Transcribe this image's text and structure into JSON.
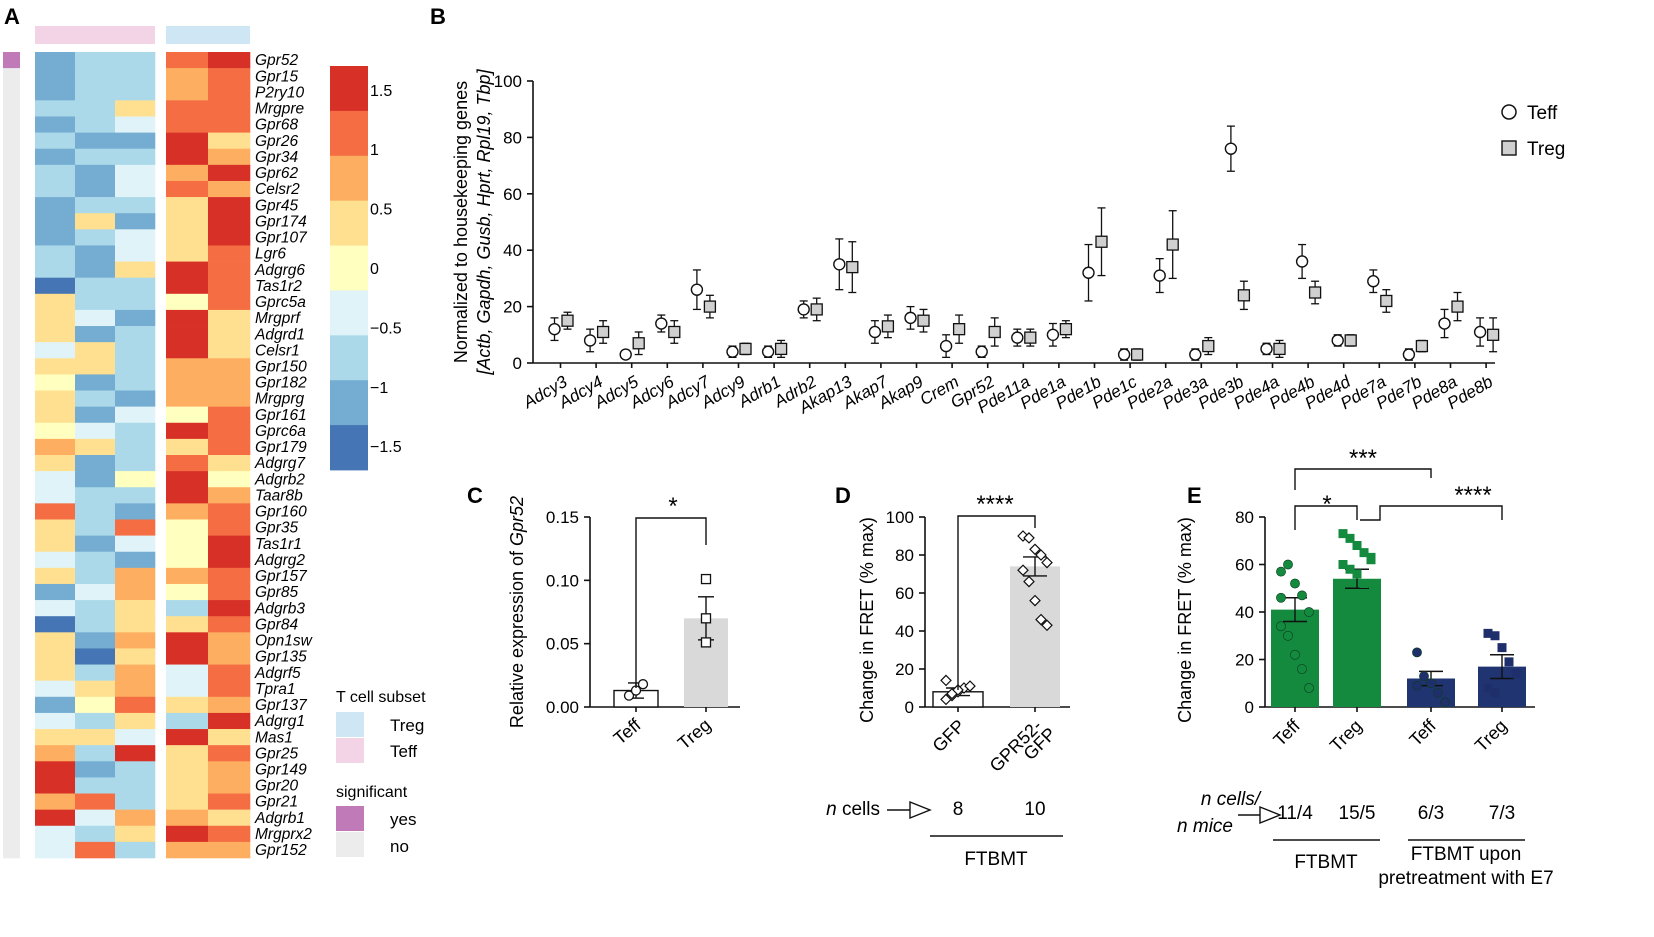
{
  "chart_data": [
    {
      "panel": "A",
      "type": "heatmap",
      "title": "",
      "column_groups": [
        {
          "name": "Teff",
          "columns": 3,
          "color": "#f3d3e6"
        },
        {
          "name": "Treg",
          "columns": 2,
          "color": "#cfe6f5"
        }
      ],
      "genes": [
        "Gpr52",
        "Gpr15",
        "P2ry10",
        "Mrgpre",
        "Gpr68",
        "Gpr26",
        "Gpr34",
        "Gpr62",
        "Celsr2",
        "Gpr45",
        "Gpr174",
        "Gpr107",
        "Lgr6",
        "Adgrg6",
        "Tas1r2",
        "Gprc5a",
        "Mrgprf",
        "Adgrd1",
        "Celsr1",
        "Gpr150",
        "Gpr182",
        "Mrgprg",
        "Gpr161",
        "Gprc6a",
        "Gpr179",
        "Adgrg7",
        "Adgrb2",
        "Taar8b",
        "Gpr160",
        "Gpr35",
        "Tas1r1",
        "Adgrg2",
        "Gpr157",
        "Gpr85",
        "Adgrb3",
        "Gpr84",
        "Opn1sw",
        "Gpr135",
        "Adgrf5",
        "Tpra1",
        "Gpr137",
        "Adgrg1",
        "Mas1",
        "Gpr25",
        "Gpr149",
        "Gpr20",
        "Gpr21",
        "Adgrb1",
        "Mrgprx2",
        "Gpr152"
      ],
      "values": [
        [
          -1.0,
          -0.6,
          -0.8,
          1.0,
          1.4
        ],
        [
          -1.0,
          -0.8,
          -0.6,
          0.9,
          1.3
        ],
        [
          -1.1,
          -0.9,
          -0.7,
          0.7,
          1.2
        ],
        [
          -0.9,
          -0.8,
          0.2,
          1.3,
          1.0
        ],
        [
          -1.2,
          -0.9,
          -0.3,
          1.0,
          1.2
        ],
        [
          -0.6,
          -1.0,
          -1.2,
          1.5,
          0.5
        ],
        [
          -1.0,
          -0.7,
          -0.9,
          1.4,
          0.8
        ],
        [
          -0.8,
          -1.0,
          -0.5,
          0.6,
          1.5
        ],
        [
          -0.7,
          -1.1,
          -0.4,
          1.0,
          0.9
        ],
        [
          -1.1,
          -0.6,
          -0.7,
          0.4,
          1.7
        ],
        [
          -1.2,
          0.2,
          -1.0,
          0.3,
          1.5
        ],
        [
          -1.0,
          -0.7,
          -0.5,
          0.3,
          1.4
        ],
        [
          -0.7,
          -1.2,
          -0.2,
          0.3,
          1.3
        ],
        [
          -0.6,
          -1.1,
          0.3,
          1.5,
          1.1
        ],
        [
          -1.4,
          -0.7,
          -0.8,
          1.4,
          1.0
        ],
        [
          0.4,
          -0.9,
          -0.7,
          0.1,
          1.3
        ],
        [
          0.3,
          -0.5,
          -1.1,
          1.4,
          0.4
        ],
        [
          0.2,
          -1.0,
          -0.6,
          1.5,
          0.3
        ],
        [
          -0.5,
          0.3,
          -0.9,
          1.7,
          0.5
        ],
        [
          0.3,
          0.2,
          -0.7,
          0.9,
          0.9
        ],
        [
          0.1,
          -1.3,
          -0.9,
          0.8,
          0.8
        ],
        [
          0.3,
          -0.7,
          -1.1,
          0.9,
          0.9
        ],
        [
          0.2,
          -1.2,
          -0.3,
          0.1,
          1.2
        ],
        [
          -0.1,
          -0.5,
          -0.9,
          1.4,
          1.1
        ],
        [
          0.6,
          0.3,
          -0.8,
          0.2,
          1.3
        ],
        [
          0.2,
          -1.1,
          -0.6,
          1.3,
          0.4
        ],
        [
          -0.5,
          -1.2,
          0.1,
          1.5,
          0.1
        ],
        [
          -0.4,
          -0.7,
          -0.9,
          1.4,
          0.7
        ],
        [
          1.0,
          -0.9,
          -1.1,
          0.8,
          1.0
        ],
        [
          0.2,
          -0.8,
          1.1,
          -0.1,
          1.3
        ],
        [
          0.5,
          -1.0,
          -0.4,
          0.0,
          1.6
        ],
        [
          -0.2,
          -0.6,
          -1.0,
          -0.1,
          1.6
        ],
        [
          0.4,
          -0.9,
          0.6,
          0.8,
          1.2
        ],
        [
          -1.1,
          -0.4,
          0.9,
          0.1,
          1.0
        ],
        [
          -0.4,
          -0.7,
          0.5,
          -0.6,
          1.7
        ],
        [
          -1.4,
          -0.8,
          0.3,
          0.4,
          1.0
        ],
        [
          0.3,
          -1.2,
          0.7,
          1.7,
          0.6
        ],
        [
          0.2,
          -1.4,
          0.4,
          1.5,
          0.7
        ],
        [
          0.5,
          -0.8,
          0.9,
          -0.5,
          1.2
        ],
        [
          -0.5,
          0.4,
          0.7,
          -0.4,
          1.3
        ],
        [
          -1.3,
          0.1,
          1.1,
          0.5,
          0.9
        ],
        [
          -0.3,
          -0.9,
          0.5,
          -0.6,
          1.4
        ],
        [
          0.2,
          0.4,
          -0.5,
          1.5,
          0.5
        ],
        [
          0.6,
          -0.8,
          1.4,
          0.5,
          1.0
        ],
        [
          1.4,
          -1.2,
          -0.6,
          0.3,
          0.9
        ],
        [
          1.6,
          -0.7,
          -0.9,
          0.4,
          0.8
        ],
        [
          0.8,
          1.3,
          -0.8,
          0.2,
          1.0
        ],
        [
          1.4,
          -0.3,
          0.6,
          0.9,
          0.4
        ],
        [
          -0.4,
          -0.6,
          0.3,
          1.5,
          1.0
        ],
        [
          -0.2,
          1.1,
          -0.9,
          0.6,
          0.9
        ]
      ],
      "significant": [
        true,
        false,
        false,
        false,
        false,
        false,
        false,
        false,
        false,
        false,
        false,
        false,
        false,
        false,
        false,
        false,
        false,
        false,
        false,
        false,
        false,
        false,
        false,
        false,
        false,
        false,
        false,
        false,
        false,
        false,
        false,
        false,
        false,
        false,
        false,
        false,
        false,
        false,
        false,
        false,
        false,
        false,
        false,
        false,
        false,
        false,
        false,
        false,
        false,
        false
      ],
      "colorbar": {
        "min": -1.7,
        "max": 1.7,
        "ticks": [
          1.5,
          1,
          0.5,
          0,
          -0.5,
          -1,
          -1.5
        ],
        "tick_labels": [
          "1.5",
          "1",
          "0.5",
          "0",
          "−0.5",
          "−1",
          "−1.5"
        ]
      },
      "colormap": [
        "#4575b4",
        "#74add1",
        "#abd9e9",
        "#e0f3f8",
        "#ffffbf",
        "#fee090",
        "#fdae61",
        "#f46d43",
        "#d73027"
      ],
      "legend": {
        "subset_title": "T cell subset",
        "subset_items": [
          {
            "label": "Treg",
            "color": "#cfe6f5"
          },
          {
            "label": "Teff",
            "color": "#f3d3e6"
          }
        ],
        "significant_title": "significant",
        "significant_items": [
          {
            "label": "yes",
            "color": "#c07ab8"
          },
          {
            "label": "no",
            "color": "#ececec"
          }
        ]
      }
    },
    {
      "panel": "B",
      "type": "scatter",
      "title": "",
      "ylabel_line1": "Normalized to housekeeping genes",
      "ylabel_line2": "[Actb, Gapdh, Gusb, Hprt, Rpl19, Tbp]",
      "ylim": [
        0,
        100
      ],
      "yticks": [
        0,
        20,
        40,
        60,
        80,
        100
      ],
      "categories": [
        "Adcy3",
        "Adcy4",
        "Adcy5",
        "Adcy6",
        "Adcy7",
        "Adcy9",
        "Adrb1",
        "Adrb2",
        "Akap13",
        "Akap7",
        "Akap9",
        "Crem",
        "Gpr52",
        "Pde11a",
        "Pde1a",
        "Pde1b",
        "Pde1c",
        "Pde2a",
        "Pde3a",
        "Pde3b",
        "Pde4a",
        "Pde4b",
        "Pde4d",
        "Pde7a",
        "Pde7b",
        "Pde8a",
        "Pde8b"
      ],
      "series": [
        {
          "name": "Teff",
          "marker": "open circle",
          "values": [
            12,
            8,
            3,
            14,
            26,
            4,
            4,
            19,
            35,
            11,
            16,
            6,
            4,
            9,
            10,
            32,
            3,
            31,
            3,
            76,
            5,
            36,
            8,
            29,
            3,
            14,
            11
          ],
          "errors": [
            4,
            4,
            1,
            3,
            7,
            2,
            2,
            3,
            9,
            4,
            4,
            4,
            2,
            3,
            4,
            10,
            2,
            6,
            2,
            8,
            2,
            6,
            2,
            4,
            2,
            5,
            5
          ]
        },
        {
          "name": "Treg",
          "marker": "gray square",
          "values": [
            15,
            11,
            7,
            11,
            20,
            5,
            5,
            19,
            34,
            13,
            15,
            12,
            11,
            9,
            12,
            43,
            3,
            42,
            6,
            24,
            5,
            25,
            8,
            22,
            6,
            20,
            10
          ],
          "errors": [
            3,
            4,
            4,
            4,
            4,
            2,
            3,
            4,
            9,
            4,
            4,
            5,
            5,
            3,
            3,
            12,
            2,
            12,
            3,
            5,
            3,
            4,
            2,
            4,
            2,
            5,
            6
          ]
        }
      ],
      "legend": [
        "Teff",
        "Treg"
      ]
    },
    {
      "panel": "C",
      "type": "bar",
      "ylabel_pre": "Relative expression of ",
      "ylabel_gene": "Gpr52",
      "categories": [
        "Teff",
        "Treg"
      ],
      "values": [
        0.013,
        0.07
      ],
      "errors": [
        0.006,
        0.017
      ],
      "points": [
        [
          0.009,
          0.013,
          0.018
        ],
        [
          0.051,
          0.07,
          0.101
        ]
      ],
      "ylim": [
        0,
        0.15
      ],
      "yticks": [
        0,
        0.05,
        0.1,
        0.15
      ],
      "ytick_labels": [
        "0.00",
        "0.05",
        "0.10",
        "0.15"
      ],
      "significance": "*"
    },
    {
      "panel": "D",
      "type": "bar",
      "ylabel": "Change in FRET (% max)",
      "categories": [
        "GFP",
        "GPR52-GFP"
      ],
      "category_lines": [
        [
          "GFP"
        ],
        [
          "GPR52-",
          "GFP"
        ]
      ],
      "values": [
        8,
        74
      ],
      "errors": [
        2,
        5
      ],
      "points": [
        [
          4,
          6,
          8,
          10,
          11,
          14,
          7,
          9
        ],
        [
          90,
          89,
          83,
          80,
          76,
          72,
          66,
          56,
          46,
          43
        ]
      ],
      "ylim": [
        0,
        100
      ],
      "yticks": [
        0,
        20,
        40,
        60,
        80,
        100
      ],
      "significance": "****",
      "n_label": "n",
      "n_label_suffix": " cells",
      "n_values": [
        "8",
        "10"
      ],
      "group_label": "FTBMT"
    },
    {
      "panel": "E",
      "type": "bar",
      "ylabel": "Change in FRET (% max)",
      "categories": [
        "Teff",
        "Treg",
        "Teff",
        "Treg"
      ],
      "values": [
        41,
        54,
        12,
        17
      ],
      "errors": [
        5,
        4,
        3,
        5
      ],
      "points": [
        [
          57,
          60,
          52,
          47,
          40,
          34,
          30,
          22,
          16,
          8,
          46
        ],
        [
          73,
          71,
          68,
          65,
          63,
          60,
          58,
          56,
          52,
          46,
          40,
          36,
          30,
          13,
          62
        ],
        [
          23,
          13,
          10,
          6,
          2,
          9
        ],
        [
          31,
          30,
          25,
          19,
          14,
          8,
          6
        ]
      ],
      "point_colors": [
        "#138a3e",
        "#138a3e",
        "#1f2f6b",
        "#1f2f6b"
      ],
      "bar_colors": [
        "#138a3e",
        "#138a3e",
        "#1f3470",
        "#1f3470"
      ],
      "ylim": [
        0,
        80
      ],
      "yticks": [
        0,
        20,
        40,
        60,
        80
      ],
      "significance": [
        {
          "from": "Teff (FTBMT)",
          "to": "Treg (FTBMT)",
          "label": "*"
        },
        {
          "from": "Teff (FTBMT)",
          "to": "Teff (E7)",
          "label": "***"
        },
        {
          "from": "Treg (FTBMT)",
          "to": "Treg (E7)",
          "label": "****"
        }
      ],
      "n_label_line1": "n cells/",
      "n_label_line2": "n mice",
      "n_values": [
        "11/4",
        "15/5",
        "6/3",
        "7/3"
      ],
      "group_labels": [
        "FTBMT",
        "FTBMT upon",
        "pretreatment with E7"
      ]
    }
  ],
  "panel_letters": [
    "A",
    "B",
    "C",
    "D",
    "E"
  ]
}
